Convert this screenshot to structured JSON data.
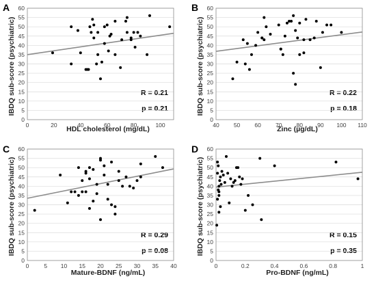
{
  "chart_data": [
    {
      "panel": "A",
      "type": "scatter",
      "xlabel": "HDL cholesterol (mg/dL)",
      "ylabel": "IBDQ sub-score (psychiatric)",
      "xlim": [
        0,
        110
      ],
      "ylim": [
        0,
        60
      ],
      "xticks": [
        0,
        20,
        40,
        60,
        80,
        100
      ],
      "yticks": [
        0,
        5,
        10,
        15,
        20,
        25,
        30,
        35,
        40,
        45,
        50,
        55,
        60
      ],
      "grid": true,
      "r_label": "R = 0.21",
      "p_label": "p = 0.21",
      "trend": [
        [
          0,
          35
        ],
        [
          110,
          46.5
        ]
      ],
      "x": [
        19,
        33,
        33,
        38,
        40,
        44,
        45,
        46,
        47,
        48,
        49,
        50,
        50,
        52,
        53,
        53,
        55,
        56,
        58,
        58,
        60,
        61,
        62,
        63,
        66,
        66,
        70,
        71,
        74,
        75,
        75,
        78,
        78,
        80,
        81,
        83,
        85,
        90,
        92,
        107
      ],
      "y": [
        36,
        30,
        50,
        48,
        36,
        27,
        27,
        27,
        50,
        47,
        54,
        51,
        44,
        30,
        47,
        35,
        22,
        31,
        41,
        50,
        51,
        37,
        45,
        46,
        35,
        53,
        28,
        43,
        53,
        55,
        47,
        43,
        44,
        47,
        39,
        47,
        45,
        35,
        56,
        50
      ]
    },
    {
      "panel": "B",
      "type": "scatter",
      "xlabel": "Zinc (µg/dL)",
      "ylabel": "IBDQ sub-score (psychiatric)",
      "xlim": [
        40,
        110
      ],
      "ylim": [
        0,
        60
      ],
      "xticks": [
        40,
        50,
        60,
        70,
        80,
        90,
        100,
        110
      ],
      "yticks": [
        0,
        5,
        10,
        15,
        20,
        25,
        30,
        35,
        40,
        45,
        50,
        55,
        60
      ],
      "grid": true,
      "r_label": "R = 0.22",
      "p_label": "p = 0.18",
      "trend": [
        [
          40,
          36.8
        ],
        [
          110,
          47.2
        ]
      ],
      "x": [
        48,
        50,
        53,
        54,
        55,
        56,
        57,
        59,
        60,
        62,
        62,
        63,
        63,
        64,
        66,
        70,
        71,
        71,
        72,
        73,
        74,
        75,
        76,
        77,
        77,
        78,
        78,
        79,
        80,
        80,
        82,
        82,
        83,
        85,
        87,
        88,
        90,
        91,
        93,
        95,
        100
      ],
      "y": [
        22,
        31,
        43,
        30,
        41,
        27,
        35,
        40,
        47,
        44,
        44,
        55,
        43,
        50,
        46,
        51,
        38,
        38,
        35,
        45,
        52,
        53,
        53,
        56,
        25,
        19,
        48,
        44,
        52,
        35,
        36,
        43,
        54,
        43,
        44,
        53,
        28,
        47,
        51,
        51,
        47
      ]
    },
    {
      "panel": "C",
      "type": "scatter",
      "xlabel": "Mature-BDNF (ng/mL)",
      "ylabel": "IBDQ sub-score (psychiatric)",
      "xlim": [
        0,
        40
      ],
      "ylim": [
        0,
        60
      ],
      "xticks": [
        0,
        5,
        10,
        15,
        20,
        25,
        30,
        35,
        40
      ],
      "yticks": [
        0,
        5,
        10,
        15,
        20,
        25,
        30,
        35,
        40,
        45,
        50,
        55,
        60
      ],
      "grid": true,
      "r_label": "R = 0.29",
      "p_label": "p = 0.08",
      "trend": [
        [
          0,
          33.5
        ],
        [
          40,
          49.3
        ]
      ],
      "x": [
        2,
        9,
        11,
        12,
        13,
        14,
        14,
        15,
        15,
        16,
        16,
        16,
        17,
        17,
        17,
        18,
        18,
        19,
        19,
        20,
        20,
        20,
        21,
        21,
        22,
        22,
        23,
        23,
        24,
        24,
        25,
        25,
        26,
        27,
        28,
        29,
        30,
        31,
        31,
        35,
        37
      ],
      "y": [
        27,
        46,
        31,
        37,
        37,
        50,
        35,
        37,
        43,
        48,
        47,
        37,
        44,
        50,
        28,
        32,
        49,
        41,
        36,
        54,
        22,
        55,
        46,
        51,
        33,
        41,
        53,
        30,
        25,
        29,
        48,
        43,
        40,
        45,
        40,
        39,
        43,
        45,
        52,
        56,
        50
      ]
    },
    {
      "panel": "D",
      "type": "scatter",
      "xlabel": "Pro-BDNF (ng/mL)",
      "ylabel": "IBDQ sub-score (psychiatric)",
      "xlim": [
        0,
        1
      ],
      "ylim": [
        0,
        60
      ],
      "xticks": [
        0,
        0.2,
        0.4,
        0.6,
        0.8,
        1
      ],
      "yticks": [
        0,
        5,
        10,
        15,
        20,
        25,
        30,
        35,
        40,
        45,
        50,
        55,
        60
      ],
      "grid": true,
      "r_label": "R = 0.15",
      "p_label": "p = 0.35",
      "trend": [
        [
          0,
          39.5
        ],
        [
          1,
          47.5
        ]
      ],
      "x": [
        0.005,
        0.01,
        0.01,
        0.015,
        0.015,
        0.02,
        0.02,
        0.02,
        0.025,
        0.03,
        0.03,
        0.035,
        0.04,
        0.05,
        0.06,
        0.07,
        0.08,
        0.09,
        0.1,
        0.11,
        0.12,
        0.13,
        0.14,
        0.15,
        0.16,
        0.17,
        0.18,
        0.2,
        0.22,
        0.25,
        0.3,
        0.31,
        0.4,
        0.82,
        0.97,
        0.02,
        0.01
      ],
      "y": [
        19,
        47,
        53,
        51,
        38,
        26,
        37,
        40,
        43,
        45,
        29,
        41,
        48,
        46,
        42,
        56,
        47,
        31,
        44,
        40,
        42,
        43,
        50,
        50,
        45,
        41,
        44,
        27,
        35,
        30,
        55,
        22,
        51,
        53,
        44,
        35,
        33
      ]
    }
  ]
}
